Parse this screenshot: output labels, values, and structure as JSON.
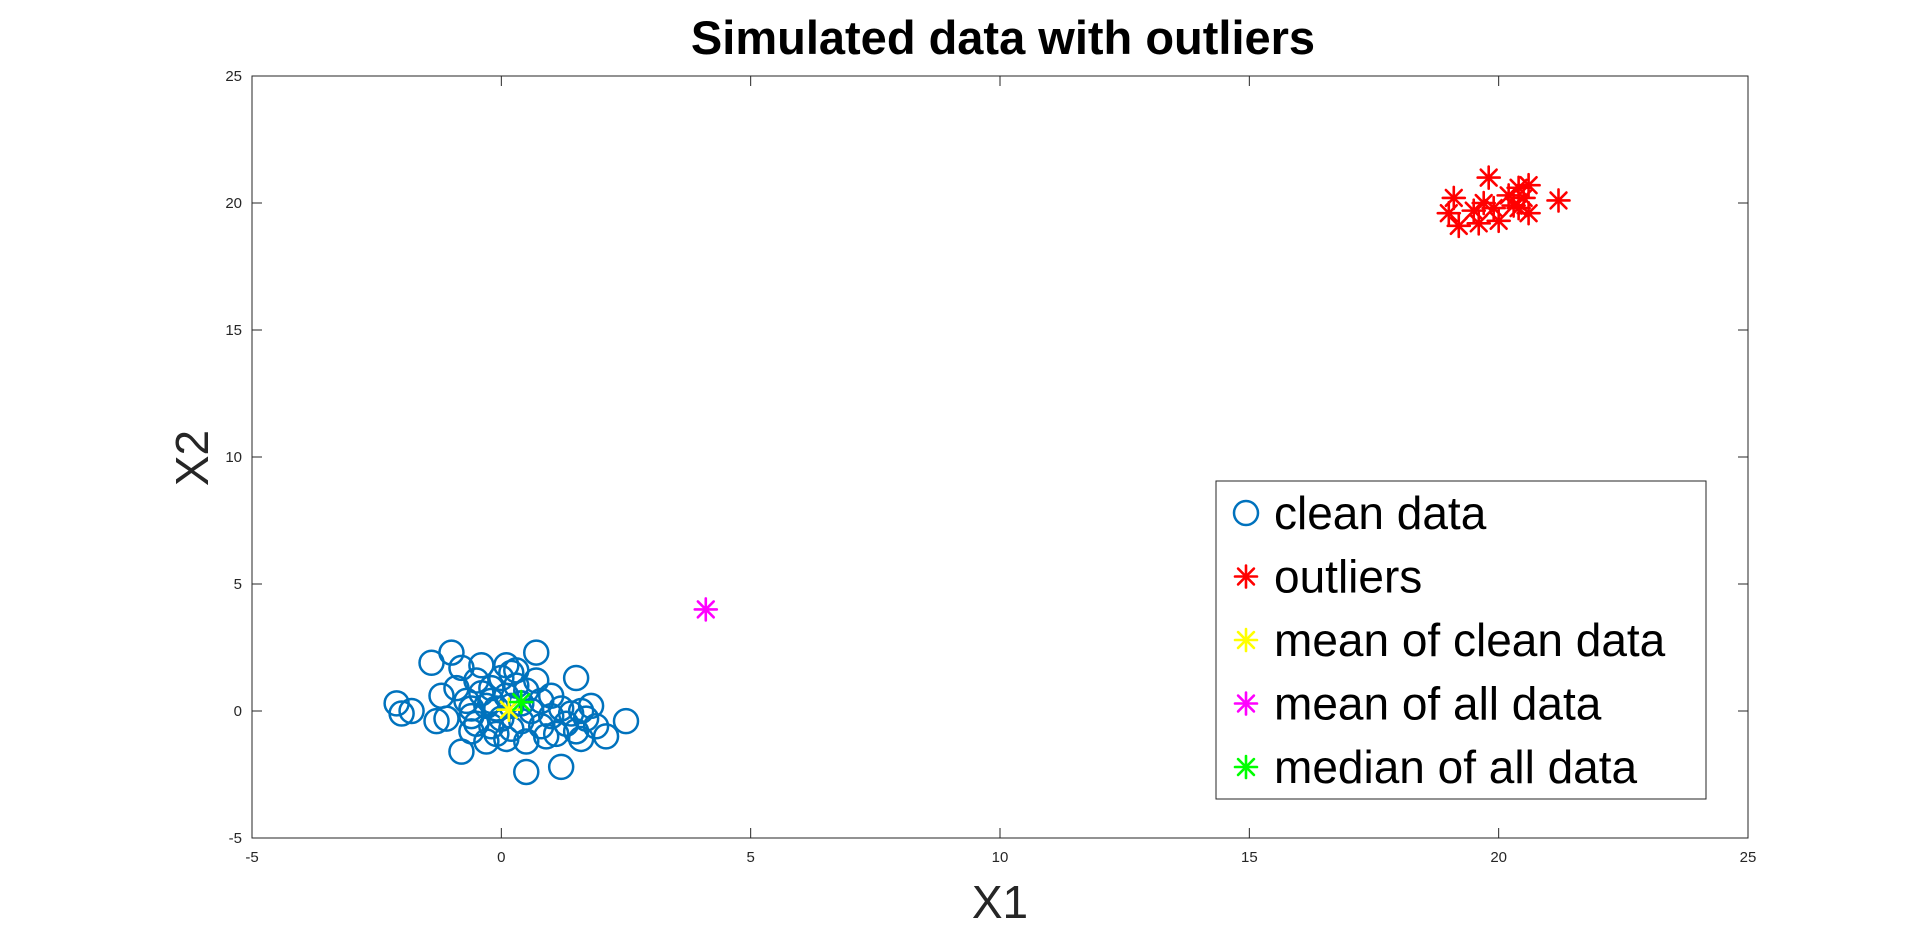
{
  "chart_data": {
    "type": "scatter",
    "title": "Simulated data with outliers",
    "xlabel": "X1",
    "ylabel": "X2",
    "xlim": [
      -5,
      25
    ],
    "ylim": [
      -5,
      25
    ],
    "xticks": [
      -5,
      0,
      5,
      10,
      15,
      20,
      25
    ],
    "yticks": [
      -5,
      0,
      5,
      10,
      15,
      20,
      25
    ],
    "grid": false,
    "legend_position": "bottom-right",
    "series": [
      {
        "name": "clean data",
        "marker": "circle",
        "color": "#0072BD",
        "points": [
          [
            -2.1,
            0.3
          ],
          [
            -2.0,
            -0.1
          ],
          [
            -1.8,
            0.0
          ],
          [
            -1.4,
            1.9
          ],
          [
            -1.3,
            -0.4
          ],
          [
            -1.2,
            0.6
          ],
          [
            -1.1,
            -0.3
          ],
          [
            -1.0,
            2.3
          ],
          [
            -0.9,
            0.9
          ],
          [
            -0.8,
            -1.6
          ],
          [
            -0.8,
            1.7
          ],
          [
            -0.7,
            0.4
          ],
          [
            -0.6,
            -0.8
          ],
          [
            -0.6,
            0.1
          ],
          [
            -0.5,
            1.2
          ],
          [
            -0.5,
            -0.5
          ],
          [
            -0.4,
            1.8
          ],
          [
            -0.4,
            0.7
          ],
          [
            -0.3,
            0.2
          ],
          [
            -0.3,
            -1.2
          ],
          [
            -0.2,
            0.9
          ],
          [
            -0.2,
            -0.6
          ],
          [
            -0.2,
            0.4
          ],
          [
            -0.1,
            -0.9
          ],
          [
            -0.1,
            0.1
          ],
          [
            0.0,
            1.3
          ],
          [
            0.0,
            -0.3
          ],
          [
            0.1,
            0.6
          ],
          [
            0.1,
            -1.1
          ],
          [
            0.1,
            1.8
          ],
          [
            0.2,
            0.2
          ],
          [
            0.2,
            -0.7
          ],
          [
            0.3,
            1.0
          ],
          [
            0.3,
            1.6
          ],
          [
            0.4,
            -0.4
          ],
          [
            0.4,
            0.3
          ],
          [
            0.5,
            -2.4
          ],
          [
            0.5,
            -1.2
          ],
          [
            0.5,
            0.8
          ],
          [
            0.6,
            0.0
          ],
          [
            0.7,
            2.3
          ],
          [
            0.7,
            1.2
          ],
          [
            0.8,
            -0.6
          ],
          [
            0.8,
            0.4
          ],
          [
            0.9,
            -1.0
          ],
          [
            1.0,
            0.6
          ],
          [
            1.0,
            -0.2
          ],
          [
            1.1,
            -0.9
          ],
          [
            1.2,
            -2.2
          ],
          [
            1.2,
            0.1
          ],
          [
            1.3,
            -0.5
          ],
          [
            1.4,
            -0.1
          ],
          [
            1.5,
            1.3
          ],
          [
            1.5,
            -0.8
          ],
          [
            1.6,
            0.0
          ],
          [
            1.6,
            -1.1
          ],
          [
            1.7,
            -0.3
          ],
          [
            1.8,
            0.2
          ],
          [
            1.9,
            -0.6
          ],
          [
            2.1,
            -1.0
          ],
          [
            2.5,
            -0.4
          ],
          [
            0.4,
            0.3
          ],
          [
            0.2,
            1.5
          ],
          [
            -0.6,
            -0.2
          ]
        ]
      },
      {
        "name": "outliers",
        "marker": "asterisk",
        "color": "#FF0000",
        "points": [
          [
            19.0,
            19.6
          ],
          [
            19.1,
            20.2
          ],
          [
            19.2,
            19.1
          ],
          [
            19.5,
            19.7
          ],
          [
            19.6,
            19.2
          ],
          [
            19.7,
            20.0
          ],
          [
            19.8,
            21.0
          ],
          [
            19.9,
            19.8
          ],
          [
            20.0,
            19.3
          ],
          [
            20.2,
            20.3
          ],
          [
            20.3,
            19.9
          ],
          [
            20.4,
            20.6
          ],
          [
            20.5,
            20.2
          ],
          [
            20.6,
            19.6
          ],
          [
            20.4,
            19.8
          ],
          [
            20.6,
            20.7
          ],
          [
            21.2,
            20.1
          ]
        ]
      },
      {
        "name": "mean of clean data",
        "marker": "asterisk",
        "color": "#FFFF00",
        "points": [
          [
            0.15,
            0.05
          ]
        ]
      },
      {
        "name": "mean of all data",
        "marker": "asterisk",
        "color": "#FF00FF",
        "points": [
          [
            4.1,
            4.0
          ]
        ]
      },
      {
        "name": "median of all data",
        "marker": "asterisk",
        "color": "#00FF00",
        "points": [
          [
            0.4,
            0.35
          ]
        ]
      }
    ]
  }
}
